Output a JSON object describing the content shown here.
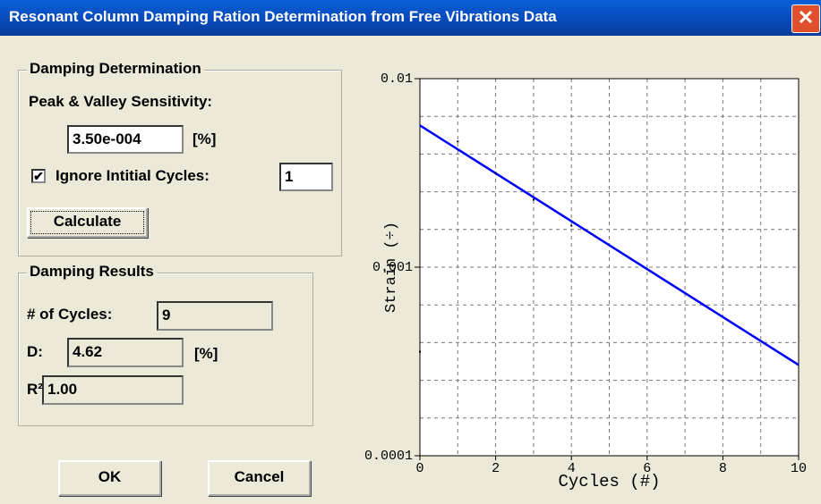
{
  "window": {
    "title": "Resonant Column Damping Ration Determination from Free Vibrations Data"
  },
  "determination": {
    "group": "Damping Determination",
    "sensitivity_label": "Peak & Valley Sensitivity:",
    "sensitivity": "3.50e-004",
    "sensitivity_unit": "[%]",
    "ignore_label": "Ignore Intitial Cycles:",
    "ignore_checked": true,
    "ignore_cycles": "1",
    "calculate": "Calculate"
  },
  "results": {
    "group": "Damping Results",
    "cycles_label": "# of Cycles:",
    "cycles": "9",
    "d_label": "D:",
    "d": "4.62",
    "d_unit": "[%]",
    "r2_label": "R²:",
    "r2": "1.00"
  },
  "buttons": {
    "ok": "OK",
    "cancel": "Cancel"
  },
  "chart_data": {
    "type": "line",
    "xlabel": "Cycles (#)",
    "ylabel": "Strain (÷)",
    "log_y": true,
    "grid": true,
    "xlim": [
      0,
      10
    ],
    "xticks": [
      0,
      2,
      4,
      6,
      8,
      10
    ],
    "ylim": [
      0.0001,
      0.01
    ],
    "yticks": [
      0.0001,
      0.001,
      0.01
    ],
    "series": [
      {
        "color": "#0000ff",
        "x": [
          0,
          10
        ],
        "values": [
          0.00565,
          0.000303
        ]
      },
      {
        "color": "#000000",
        "markers": true,
        "x": [
          0,
          1,
          2,
          3,
          4
        ],
        "values": [
          0.000356,
          0.00464,
          0.00316,
          0.00228,
          0.00166
        ]
      }
    ]
  }
}
